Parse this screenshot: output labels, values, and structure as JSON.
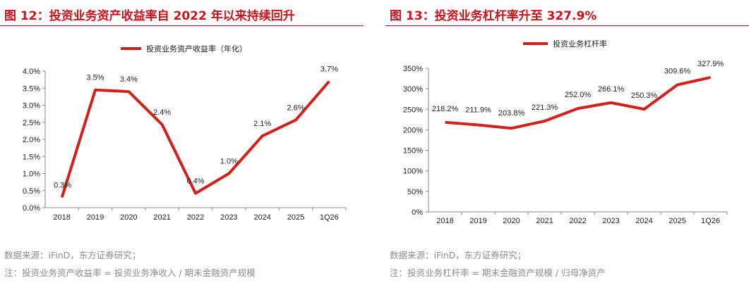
{
  "panels": [
    {
      "title": "图 12：投资业务资产收益率自 2022 年以来持续回升",
      "source": "数据来源：iFinD，东方证券研究；",
      "note": "注：投资业务资产收益率 = 投资业务净收入 / 期末金融资产规模",
      "color": "#d0211c",
      "chart_data": {
        "type": "line",
        "title": "",
        "xlabel": "",
        "ylabel": "",
        "categories": [
          "2018",
          "2019",
          "2020",
          "2021",
          "2022",
          "2023",
          "2024",
          "2025",
          "1Q26"
        ],
        "series": [
          {
            "name": "投资业务资产收益率（年化）",
            "values": [
              0.3,
              3.45,
              3.4,
              2.43,
              0.42,
              1.0,
              2.1,
              2.57,
              3.7
            ],
            "labels": [
              "0.3%",
              "3.5%",
              "3.4%",
              "2.4%",
              "0.4%",
              "1.0%",
              "2.1%",
              "2.6%",
              "3.7%"
            ]
          }
        ],
        "ylim": [
          0,
          4
        ],
        "yticks": [
          "0.0%",
          "0.5%",
          "1.0%",
          "1.5%",
          "2.0%",
          "2.5%",
          "3.0%",
          "3.5%",
          "4.0%"
        ],
        "legend": "top",
        "grid": false
      }
    },
    {
      "title": "图 13：投资业务杠杆率升至 327.9%",
      "source": "数据来源：iFinD，东方证券研究；",
      "note": "注：投资业务杠杆率 = 期末金融资产规模 / 归母净资产",
      "color": "#d0211c",
      "chart_data": {
        "type": "line",
        "title": "",
        "xlabel": "",
        "ylabel": "",
        "categories": [
          "2018",
          "2019",
          "2020",
          "2021",
          "2022",
          "2023",
          "2024",
          "2025",
          "1Q26"
        ],
        "series": [
          {
            "name": "投资业务杠杆率",
            "values": [
              218.2,
              211.9,
              203.8,
              221.3,
              252.0,
              266.1,
              250.3,
              309.6,
              327.9
            ],
            "labels": [
              "218.2%",
              "211.9%",
              "203.8%",
              "221.3%",
              "252.0%",
              "266.1%",
              "250.3%",
              "309.6%",
              "327.9%"
            ]
          }
        ],
        "ylim": [
          0,
          350
        ],
        "yticks": [
          "0%",
          "50%",
          "100%",
          "150%",
          "200%",
          "250%",
          "300%",
          "350%"
        ],
        "legend": "top",
        "grid": false
      }
    }
  ]
}
